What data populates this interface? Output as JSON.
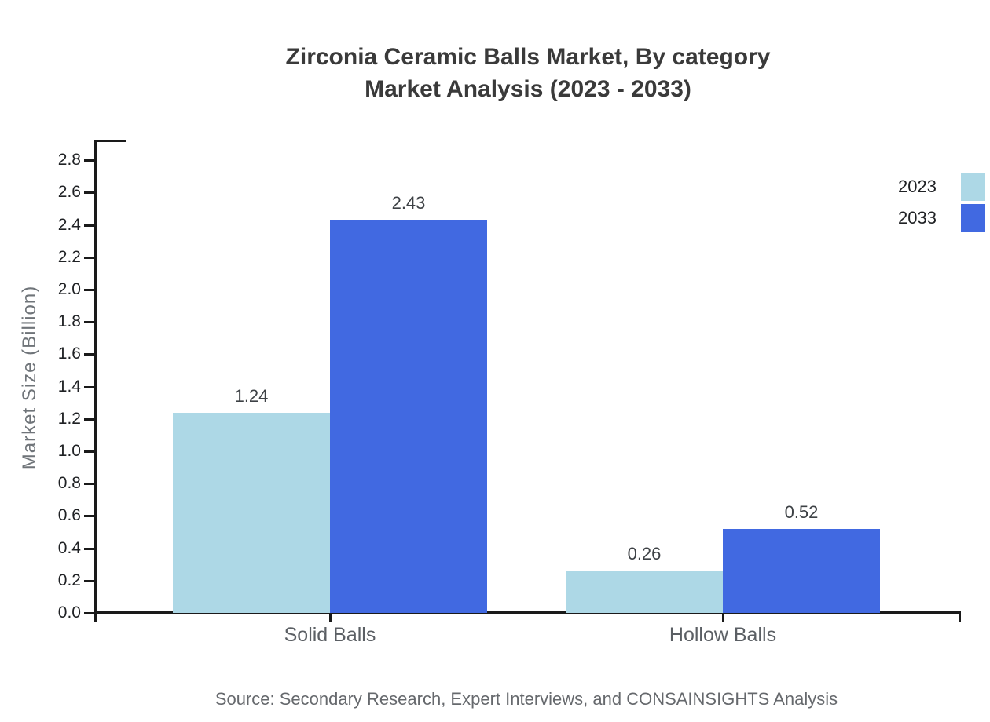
{
  "title": {
    "line1": "Zirconia Ceramic Balls Market, By category",
    "line2": "Market Analysis (2023 - 2033)"
  },
  "source_note": "Source: Secondary Research, Expert Interviews, and CONSAINSIGHTS Analysis",
  "chart_data": {
    "type": "bar",
    "title": "Zirconia Ceramic Balls Market, By category Market Analysis (2023 - 2033)",
    "ylabel": "Market Size (Billion)",
    "xlabel": "",
    "categories": [
      "Solid Balls",
      "Hollow Balls"
    ],
    "series": [
      {
        "name": "2023",
        "color": "#ADD8E6",
        "values": [
          1.24,
          0.26
        ],
        "value_labels": [
          "1.24",
          "0.26"
        ]
      },
      {
        "name": "2033",
        "color": "#4169E1",
        "values": [
          2.43,
          0.52
        ],
        "value_labels": [
          "2.43",
          "0.52"
        ]
      }
    ],
    "ylim": [
      0.0,
      2.9
    ],
    "ytick_step": 0.2,
    "ytick_labels": [
      "0.0",
      "0.2",
      "0.4",
      "0.6",
      "0.8",
      "1.0",
      "1.2",
      "1.4",
      "1.6",
      "1.8",
      "2.0",
      "2.2",
      "2.4",
      "2.6",
      "2.8"
    ],
    "grid": false,
    "value_labels_shown": true,
    "legend_position": "top-right"
  }
}
